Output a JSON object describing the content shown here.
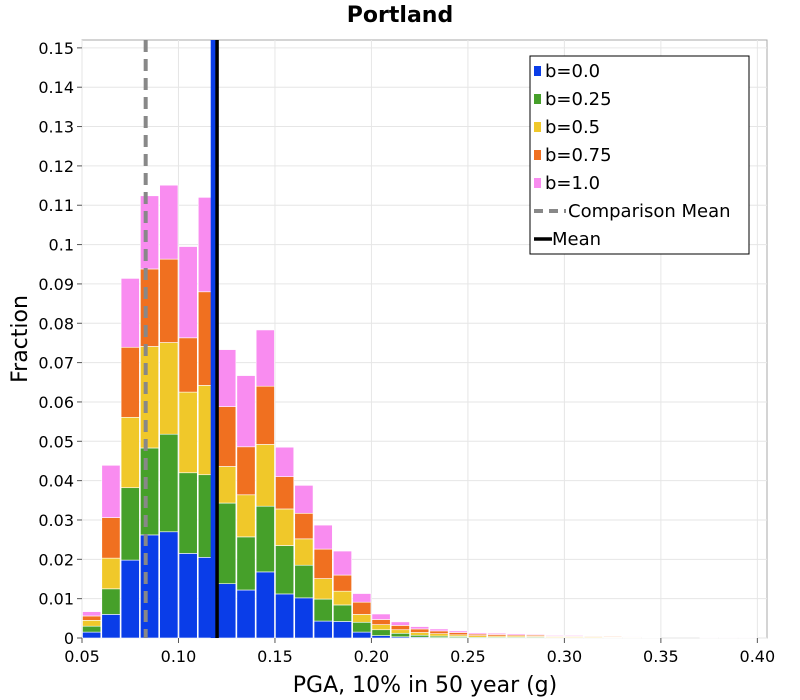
{
  "chart_data": {
    "type": "bar",
    "title": "Portland",
    "xlabel": "PGA, 10% in 50 year (g)",
    "ylabel": "Fraction",
    "xlim": [
      0.05,
      0.405
    ],
    "ylim": [
      0,
      0.152
    ],
    "x_ticks": [
      "0.05",
      "0.10",
      "0.15",
      "0.20",
      "0.25",
      "0.30",
      "0.35",
      "0.40"
    ],
    "y_ticks": [
      "0",
      "0.01",
      "0.02",
      "0.03",
      "0.04",
      "0.05",
      "0.06",
      "0.07",
      "0.08",
      "0.09",
      "0.1",
      "0.11",
      "0.12",
      "0.13",
      "0.14",
      "0.15"
    ],
    "grid": true,
    "stacked": true,
    "bin_width": 0.01,
    "bin_centers": [
      0.055,
      0.065,
      0.075,
      0.085,
      0.095,
      0.105,
      0.115,
      0.125,
      0.135,
      0.145,
      0.155,
      0.165,
      0.175,
      0.185,
      0.195,
      0.205,
      0.215,
      0.225,
      0.235,
      0.245,
      0.255,
      0.265,
      0.275,
      0.285,
      0.295,
      0.305,
      0.315,
      0.325,
      0.335,
      0.345,
      0.355,
      0.365,
      0.375,
      0.385,
      0.395
    ],
    "series": [
      {
        "name": "b=0.0",
        "color": "#0a3de8",
        "values": [
          0.0015,
          0.006,
          0.0198,
          0.0262,
          0.027,
          0.0215,
          0.0205,
          0.0138,
          0.0122,
          0.0168,
          0.0112,
          0.0102,
          0.0043,
          0.0042,
          0.0015,
          0.0006,
          0.0003,
          0.0002,
          0.0001,
          0.0001,
          0.0,
          0.0,
          0.0,
          0.0,
          0.0,
          0.0,
          0.0,
          0.0,
          0.0,
          0.0,
          0.0,
          0.0,
          0.0,
          0.0,
          0.0
        ]
      },
      {
        "name": "b=0.25",
        "color": "#46a02a",
        "values": [
          0.0015,
          0.0065,
          0.0184,
          0.0221,
          0.0248,
          0.0205,
          0.021,
          0.0205,
          0.0135,
          0.0167,
          0.0123,
          0.0083,
          0.0056,
          0.0042,
          0.0025,
          0.0015,
          0.0009,
          0.0005,
          0.0004,
          0.0003,
          0.0002,
          0.0002,
          0.0002,
          0.0002,
          0.0001,
          0.0001,
          0.0001,
          0.0001,
          0.0001,
          0.0,
          0.0,
          0.0,
          0.0,
          0.0,
          0.0
        ]
      },
      {
        "name": "b=0.5",
        "color": "#f0c82a",
        "values": [
          0.0015,
          0.0078,
          0.0179,
          0.0258,
          0.0233,
          0.0205,
          0.0227,
          0.0093,
          0.0107,
          0.0157,
          0.0093,
          0.0067,
          0.0052,
          0.0035,
          0.002,
          0.0013,
          0.0009,
          0.0007,
          0.0006,
          0.0004,
          0.0004,
          0.0003,
          0.0003,
          0.0002,
          0.0002,
          0.0002,
          0.0002,
          0.0001,
          0.0001,
          0.0001,
          0.0,
          0.0,
          0.0001,
          0.0001,
          0.0001
        ]
      },
      {
        "name": "b=0.75",
        "color": "#f07020",
        "values": [
          0.0011,
          0.0103,
          0.0178,
          0.0197,
          0.0212,
          0.0138,
          0.0238,
          0.0152,
          0.0122,
          0.0148,
          0.0082,
          0.0065,
          0.0075,
          0.0041,
          0.0031,
          0.0013,
          0.0011,
          0.0009,
          0.0007,
          0.0006,
          0.0004,
          0.0004,
          0.0003,
          0.0003,
          0.0002,
          0.0002,
          0.0002,
          0.0002,
          0.0001,
          0.0,
          0.0,
          0.0,
          0.0,
          0.0,
          0.0
        ]
      },
      {
        "name": "b=1.0",
        "color": "#f98cf0",
        "values": [
          0.0011,
          0.0133,
          0.0175,
          0.0186,
          0.0188,
          0.0232,
          0.024,
          0.0145,
          0.0181,
          0.0143,
          0.0075,
          0.0071,
          0.0061,
          0.0061,
          0.0022,
          0.0014,
          0.0009,
          0.0006,
          0.0005,
          0.0004,
          0.0003,
          0.0003,
          0.0003,
          0.0002,
          0.0002,
          0.0002,
          0.0001,
          0.0001,
          0.0001,
          0.0,
          0.0,
          0.0,
          0.0001,
          0.0001,
          0.0001
        ]
      }
    ],
    "comparison_mean": 0.083,
    "mean": 0.12,
    "blue_mean_line": 0.118,
    "legend": {
      "placement": "top-right",
      "entries": [
        {
          "label": "b=0.0",
          "color": "#0a3de8",
          "style": "square"
        },
        {
          "label": "b=0.25",
          "color": "#46a02a",
          "style": "square"
        },
        {
          "label": "b=0.5",
          "color": "#f0c82a",
          "style": "square"
        },
        {
          "label": "b=0.75",
          "color": "#f07020",
          "style": "square"
        },
        {
          "label": "b=1.0",
          "color": "#f98cf0",
          "style": "square"
        },
        {
          "label": "Comparison Mean",
          "color": "#888888",
          "style": "dashed"
        },
        {
          "label": "Mean",
          "color": "#000000",
          "style": "solid"
        }
      ]
    }
  }
}
